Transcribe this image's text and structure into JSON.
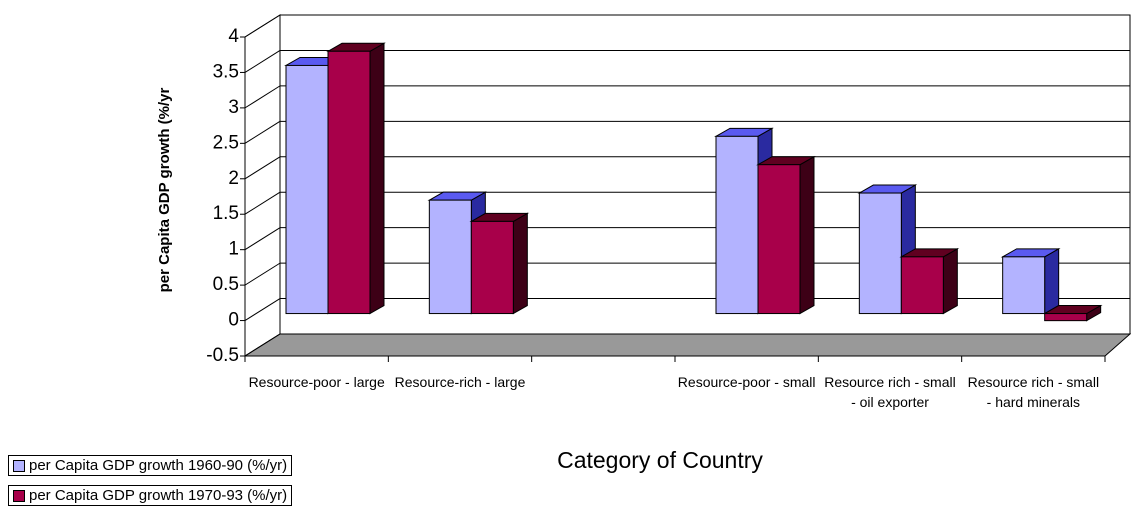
{
  "chart_data": {
    "type": "bar3d",
    "y_label": "per Capita GDP growth (%/yr",
    "x_label": "Category of Country",
    "categories": [
      "Resource-poor - large",
      "Resource-rich - large",
      null,
      "Resource-poor - small",
      "Resource rich - small - oil exporter",
      "Resource rich - small - hard minerals"
    ],
    "series": [
      {
        "name": "per Capita GDP growth 1960-90 (%/yr)",
        "color": "#b3b3ff",
        "values": [
          3.5,
          1.6,
          null,
          2.5,
          1.7,
          0.8
        ]
      },
      {
        "name": "per Capita GDP growth 1970-93 (%/yr)",
        "color": "#a8004a",
        "values": [
          3.7,
          1.3,
          null,
          2.1,
          0.8,
          -0.1
        ]
      }
    ],
    "ylim": [
      -0.5,
      4
    ],
    "yticks": [
      -0.5,
      0,
      0.5,
      1,
      1.5,
      2,
      2.5,
      3,
      3.5,
      4
    ],
    "grid": true
  }
}
